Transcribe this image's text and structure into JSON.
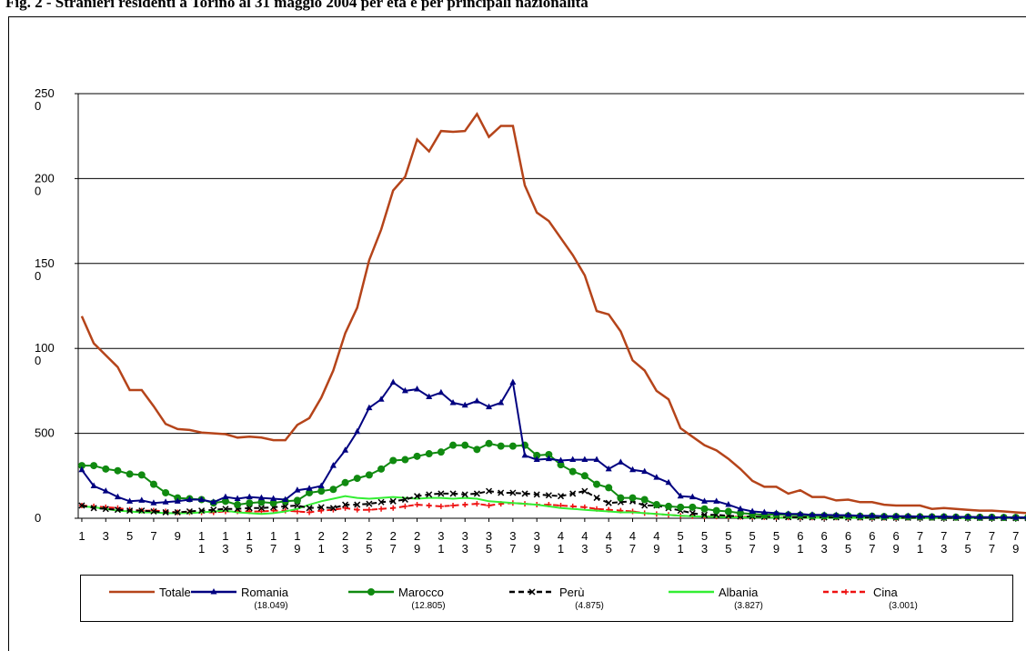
{
  "chart_data": {
    "type": "line",
    "title": "Fig. 2 - Stranieri residenti a Torino al 31 maggio 2004 per età e per principali nazionalità",
    "x": [
      1,
      2,
      3,
      4,
      5,
      6,
      7,
      8,
      9,
      10,
      11,
      12,
      13,
      14,
      15,
      16,
      17,
      18,
      19,
      20,
      21,
      22,
      23,
      24,
      25,
      26,
      27,
      28,
      29,
      30,
      31,
      32,
      33,
      34,
      35,
      36,
      37,
      38,
      39,
      40,
      41,
      42,
      43,
      44,
      45,
      46,
      47,
      48,
      49,
      50,
      51,
      52,
      53,
      54,
      55,
      56,
      57,
      58,
      59,
      60,
      61,
      62,
      63,
      64,
      65,
      66,
      67,
      68,
      69,
      70,
      71,
      72,
      73,
      74,
      75,
      76,
      77,
      78,
      79,
      80
    ],
    "xlim": [
      0.7,
      79.7
    ],
    "xticks": [
      1,
      3,
      5,
      7,
      9,
      11,
      13,
      15,
      17,
      19,
      21,
      23,
      25,
      27,
      29,
      31,
      33,
      35,
      37,
      39,
      41,
      43,
      45,
      47,
      49,
      51,
      53,
      55,
      57,
      59,
      61,
      63,
      65,
      67,
      69,
      71,
      73,
      75,
      77,
      79
    ],
    "ylim": [
      0,
      2500
    ],
    "yticks": [
      0,
      500,
      1000,
      1500,
      2000,
      2500
    ],
    "grid": true,
    "series": [
      {
        "name": "Totale",
        "color": "#b5441a",
        "marker": "none",
        "dash": false,
        "values": [
          1190,
          1030,
          960,
          890,
          755,
          755,
          660,
          555,
          525,
          520,
          505,
          500,
          495,
          475,
          480,
          475,
          460,
          460,
          550,
          590,
          710,
          870,
          1090,
          1240,
          1520,
          1700,
          1930,
          2010,
          2230,
          2160,
          2280,
          2275,
          2280,
          2380,
          2245,
          2310,
          2310,
          1960,
          1800,
          1750,
          1650,
          1550,
          1430,
          1220,
          1200,
          1100,
          930,
          870,
          750,
          700,
          530,
          480,
          430,
          400,
          350,
          290,
          220,
          185,
          185,
          145,
          165,
          125,
          125,
          105,
          110,
          95,
          95,
          80,
          75,
          75,
          75,
          55,
          60,
          55,
          50,
          45,
          45,
          40,
          35,
          30
        ]
      },
      {
        "name": "Romania",
        "sublabel": "(18.049)",
        "color": "#000080",
        "marker": "triangle",
        "dash": false,
        "values": [
          285,
          190,
          160,
          125,
          100,
          105,
          90,
          95,
          100,
          110,
          110,
          95,
          125,
          115,
          125,
          120,
          115,
          110,
          165,
          175,
          190,
          310,
          400,
          510,
          650,
          700,
          800,
          750,
          760,
          715,
          740,
          680,
          665,
          690,
          655,
          680,
          800,
          370,
          345,
          350,
          340,
          345,
          345,
          345,
          290,
          330,
          285,
          275,
          240,
          210,
          130,
          125,
          100,
          100,
          80,
          55,
          40,
          35,
          30,
          25,
          25,
          20,
          20,
          18,
          18,
          15,
          15,
          12,
          12,
          12,
          10,
          10,
          10,
          8,
          8,
          7,
          6,
          5,
          5,
          5
        ]
      },
      {
        "name": "Marocco",
        "sublabel": "(12.805)",
        "color": "#108a10",
        "marker": "circle",
        "dash": false,
        "values": [
          310,
          310,
          290,
          280,
          260,
          255,
          200,
          150,
          120,
          115,
          110,
          90,
          100,
          80,
          90,
          95,
          90,
          100,
          105,
          150,
          160,
          170,
          210,
          235,
          255,
          290,
          340,
          345,
          365,
          380,
          390,
          430,
          430,
          405,
          440,
          425,
          425,
          430,
          370,
          375,
          315,
          275,
          250,
          200,
          180,
          120,
          120,
          110,
          80,
          70,
          65,
          65,
          55,
          45,
          40,
          30,
          25,
          20,
          22,
          20,
          18,
          15,
          15,
          13,
          14,
          12,
          12,
          10,
          10,
          9,
          9,
          8,
          8,
          7,
          7,
          6,
          6,
          5,
          5,
          4
        ]
      },
      {
        "name": "Perù",
        "sublabel": "(4.875)",
        "color": "#000000",
        "marker": "x",
        "dash": true,
        "values": [
          75,
          60,
          55,
          50,
          45,
          45,
          40,
          35,
          35,
          40,
          45,
          50,
          55,
          55,
          60,
          60,
          65,
          70,
          75,
          60,
          65,
          60,
          80,
          80,
          85,
          95,
          100,
          110,
          130,
          140,
          145,
          145,
          140,
          145,
          160,
          150,
          150,
          145,
          140,
          135,
          130,
          145,
          160,
          120,
          90,
          95,
          100,
          75,
          75,
          60,
          45,
          30,
          20,
          20,
          15,
          10,
          10,
          8,
          8,
          6,
          6,
          5,
          5,
          5,
          4,
          4,
          4,
          3,
          3,
          3,
          3,
          3,
          2,
          2,
          2,
          2,
          2,
          1,
          1,
          1
        ]
      },
      {
        "name": "Albania",
        "sublabel": "(3.827)",
        "color": "#33ee33",
        "marker": "none",
        "dash": false,
        "values": [
          70,
          65,
          55,
          45,
          40,
          35,
          35,
          30,
          30,
          30,
          35,
          40,
          45,
          35,
          30,
          25,
          30,
          40,
          55,
          80,
          100,
          115,
          130,
          120,
          115,
          120,
          125,
          120,
          115,
          120,
          120,
          115,
          120,
          115,
          100,
          95,
          90,
          85,
          80,
          70,
          60,
          55,
          50,
          45,
          40,
          35,
          35,
          30,
          25,
          20,
          15,
          12,
          10,
          8,
          6,
          5,
          4,
          4,
          3,
          3,
          3,
          3,
          2,
          2,
          2,
          2,
          2,
          2,
          1,
          1,
          1,
          1,
          1,
          1,
          1,
          1,
          1,
          1,
          1,
          1
        ]
      },
      {
        "name": "Cina",
        "sublabel": "(3.001)",
        "color": "#ee1111",
        "marker": "plus",
        "dash": true,
        "values": [
          75,
          70,
          65,
          60,
          50,
          45,
          45,
          40,
          35,
          35,
          35,
          35,
          40,
          40,
          40,
          40,
          45,
          45,
          40,
          35,
          45,
          50,
          60,
          50,
          50,
          55,
          60,
          70,
          80,
          75,
          70,
          75,
          80,
          85,
          75,
          85,
          90,
          85,
          80,
          80,
          75,
          70,
          65,
          55,
          50,
          45,
          40,
          30,
          25,
          20,
          15,
          12,
          10,
          10,
          10,
          8,
          8,
          6,
          5,
          5,
          5,
          4,
          4,
          4,
          3,
          3,
          3,
          3,
          2,
          2,
          2,
          2,
          2,
          2,
          2,
          2,
          1,
          1,
          1,
          1
        ]
      }
    ]
  }
}
